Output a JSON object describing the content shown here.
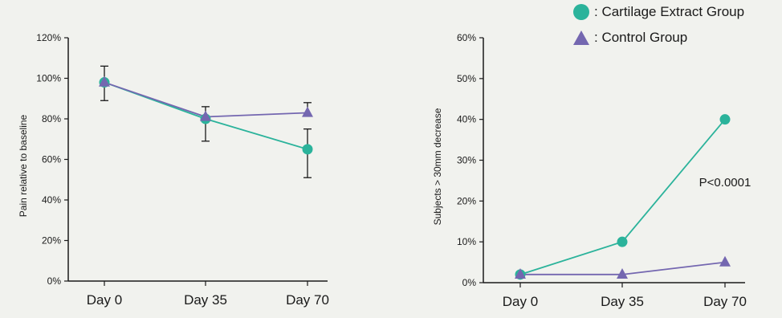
{
  "colors": {
    "extract": "#2bb39b",
    "control": "#7467b0",
    "axis": "#1a1a1a",
    "background": "#f1f2ee"
  },
  "legend": {
    "extract_label": ": Cartilage Extract Group",
    "control_label": ": Control Group",
    "extract_icon": "circle-marker-icon",
    "control_icon": "triangle-marker-icon"
  },
  "chart_data": [
    {
      "type": "line",
      "ylabel": "Pain relative to baseline",
      "xlabel": "",
      "categories": [
        "Day 0",
        "Day 35",
        "Day 70"
      ],
      "yticks": [
        "0%",
        "20%",
        "40%",
        "60%",
        "80%",
        "100%",
        "120%"
      ],
      "ylim": [
        0,
        120
      ],
      "series": [
        {
          "name": "Cartilage Extract Group",
          "marker": "circle",
          "values": [
            98,
            80,
            65
          ],
          "error": [
            [
              null,
              null
            ],
            [
              null,
              null
            ],
            [
              51,
              75
            ]
          ]
        },
        {
          "name": "Control Group",
          "marker": "triangle",
          "values": [
            98,
            81,
            83
          ],
          "error": [
            [
              89,
              106
            ],
            [
              69,
              86
            ],
            [
              null,
              88
            ]
          ]
        }
      ],
      "grid": false
    },
    {
      "type": "line",
      "ylabel": "Subjects > 30mm decrease",
      "xlabel": "",
      "categories": [
        "Day 0",
        "Day 35",
        "Day 70"
      ],
      "yticks": [
        "0%",
        "10%",
        "20%",
        "30%",
        "40%",
        "50%",
        "60%"
      ],
      "ylim": [
        0,
        60
      ],
      "series": [
        {
          "name": "Cartilage Extract Group",
          "marker": "circle",
          "values": [
            2,
            10,
            40
          ]
        },
        {
          "name": "Control Group",
          "marker": "triangle",
          "values": [
            2,
            2,
            5
          ]
        }
      ],
      "annotation": "P<0.0001",
      "grid": false
    }
  ]
}
